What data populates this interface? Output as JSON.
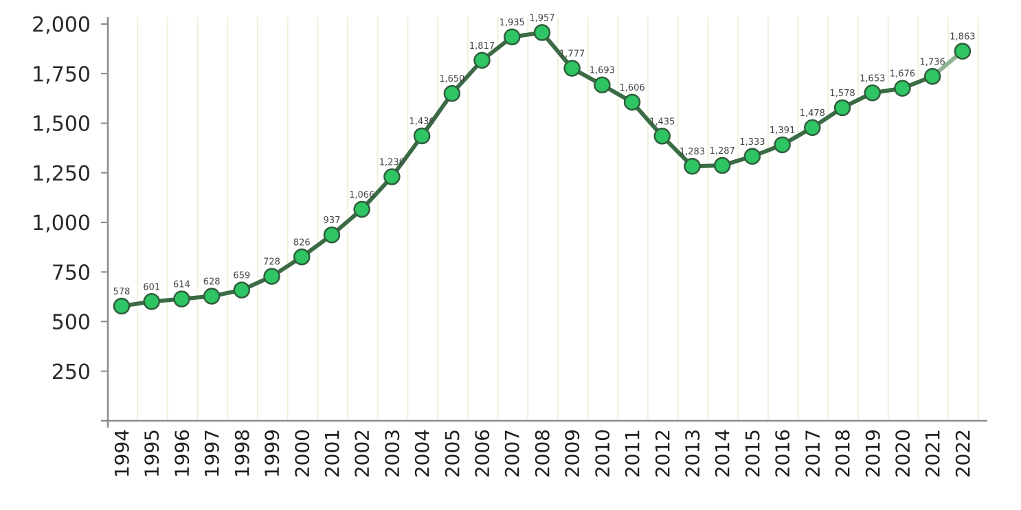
{
  "chart_data": {
    "type": "line",
    "title": "",
    "xlabel": "",
    "ylabel": "",
    "categories": [
      "1994",
      "1995",
      "1996",
      "1997",
      "1998",
      "1999",
      "2000",
      "2001",
      "2002",
      "2003",
      "2004",
      "2005",
      "2006",
      "2007",
      "2008",
      "2009",
      "2010",
      "2011",
      "2012",
      "2013",
      "2014",
      "2015",
      "2016",
      "2017",
      "2018",
      "2019",
      "2020",
      "2021",
      "2022"
    ],
    "series": [
      {
        "values": [
          578,
          601,
          614,
          628,
          659,
          728,
          826,
          937,
          1066,
          1230,
          1436,
          1650,
          1817,
          1935,
          1957,
          1777,
          1693,
          1606,
          1435,
          1283,
          1287,
          1333,
          1391,
          1478,
          1578,
          1653,
          1676,
          1736,
          1863
        ],
        "data_labels": [
          "578",
          "601",
          "614",
          "628",
          "659",
          "728",
          "826",
          "937",
          "1,066",
          "1,230",
          "1,436",
          "1,650",
          "1,817",
          "1,935",
          "1,957",
          "1,777",
          "1,693",
          "1,606",
          "1,435",
          "1,283",
          "1,287",
          "1,333",
          "1,391",
          "1,478",
          "1,578",
          "1,653",
          "1,676",
          "1,736",
          "1,863"
        ]
      }
    ],
    "ylim": [
      0,
      2000
    ],
    "yticks": [
      250,
      500,
      750,
      1000,
      1250,
      1500,
      1750,
      2000
    ],
    "ytick_labels": [
      "250",
      "500",
      "750",
      "1,000",
      "1,250",
      "1,500",
      "1,750",
      "2,000"
    ],
    "grid": "vertical",
    "legend": "none",
    "colors": {
      "line": "#3a6b45",
      "line_last_segment": "#8fb396",
      "marker_fill": "#2fc464",
      "marker_stroke": "#2f5e3a",
      "grid": "#eef2dc",
      "axis": "#8a8a8a"
    }
  }
}
